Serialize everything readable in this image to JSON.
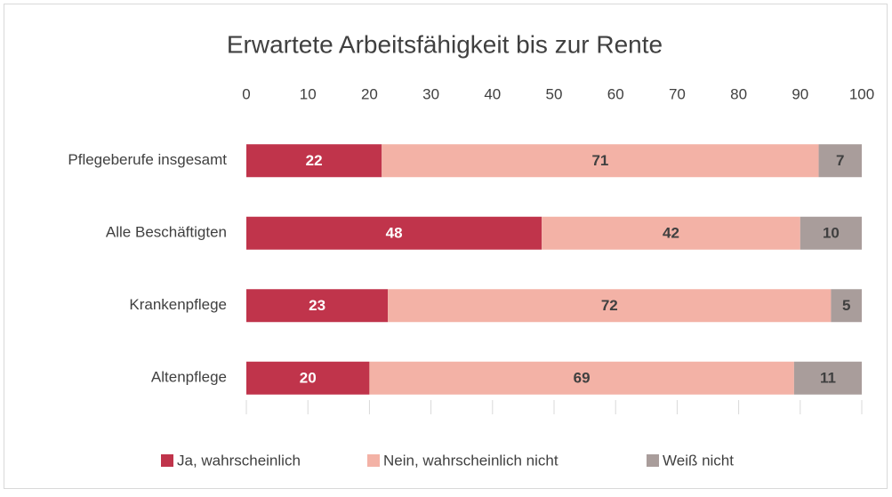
{
  "chart_data": {
    "type": "bar",
    "orientation": "horizontal",
    "stacked": true,
    "title": "Erwartete Arbeitsfähigkeit bis zur Rente",
    "categories": [
      "Pflegeberufe insgesamt",
      "Alle Beschäftigten",
      "Krankenpflege",
      "Altenpflege"
    ],
    "series": [
      {
        "name": "Ja, wahrscheinlich",
        "color": "#c0344b",
        "values": [
          22,
          48,
          23,
          20
        ]
      },
      {
        "name": "Nein, wahrscheinlich nicht",
        "color": "#f3b2a6",
        "values": [
          71,
          42,
          72,
          69
        ]
      },
      {
        "name": "Weiß nicht",
        "color": "#a99d9b",
        "values": [
          7,
          10,
          5,
          11
        ]
      }
    ],
    "xlim": [
      0,
      100
    ],
    "xticks": [
      0,
      10,
      20,
      30,
      40,
      50,
      60,
      70,
      80,
      90,
      100
    ],
    "legend": "bottom"
  }
}
